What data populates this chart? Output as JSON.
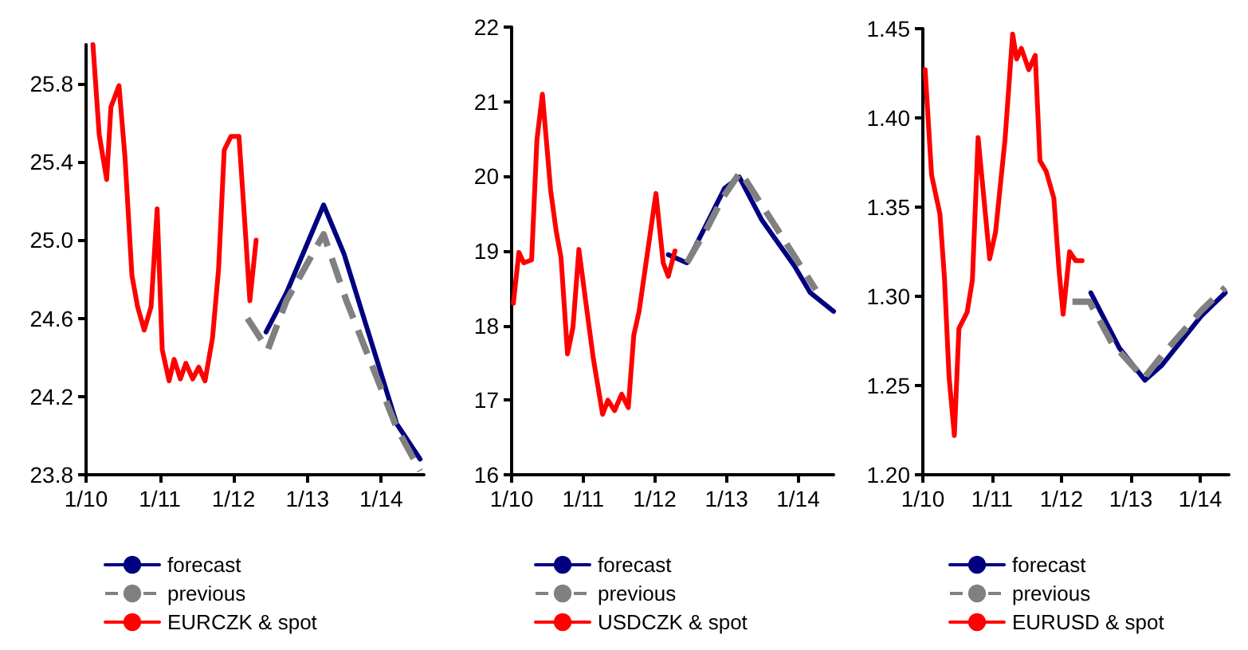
{
  "chart_data": [
    {
      "type": "line",
      "xlim": [
        "2010-01",
        "2014-08"
      ],
      "xticks": [
        {
          "value": "2010-01",
          "label": "1/10"
        },
        {
          "value": "2011-01",
          "label": "1/11"
        },
        {
          "value": "2012-01",
          "label": "1/12"
        },
        {
          "value": "2013-01",
          "label": "1/13"
        },
        {
          "value": "2014-01",
          "label": "1/14"
        }
      ],
      "ylim": [
        23.8,
        26.0
      ],
      "yticks": [
        23.8,
        24.2,
        24.6,
        {
          "value": 25,
          "label": "25.0"
        },
        25.4,
        25.8
      ],
      "legend": "bottom",
      "marker": "none",
      "series": [
        {
          "name": "forecast",
          "color": "#000080",
          "line_style": "solid",
          "x": [
            "2012-06-10",
            "2012-09-19",
            "2013-03-22",
            "2013-07-01",
            "2014-03-19",
            "2014-07-13"
          ],
          "values": [
            24.53,
            24.73,
            25.18,
            24.93,
            24.06,
            23.88
          ]
        },
        {
          "name": "previous",
          "color": "#808080",
          "line_style": "dashed",
          "x": [
            "2012-03-10",
            "2012-06-19",
            "2012-09-19",
            "2013-03-22",
            "2013-07-13",
            "2014-03-19",
            "2014-07-13"
          ],
          "values": [
            24.6,
            24.44,
            24.69,
            25.03,
            24.69,
            24.04,
            23.82
          ]
        },
        {
          "name": "EURCZK & spot",
          "color": "#ff0000",
          "line_style": "solid",
          "x": [
            "2010-02-04",
            "2010-03-07",
            "2010-04-13",
            "2010-05-04",
            "2010-06-13",
            "2010-07-13",
            "2010-08-16",
            "2010-09-13",
            "2010-10-16",
            "2010-11-19",
            "2010-12-19",
            "2011-01-13",
            "2011-02-16",
            "2011-03-13",
            "2011-04-13",
            "2011-05-10",
            "2011-06-13",
            "2011-07-13",
            "2011-08-13",
            "2011-09-19",
            "2011-10-19",
            "2011-11-16",
            "2011-12-19",
            "2012-01-28",
            "2012-02-22",
            "2012-03-22",
            "2012-04-22"
          ],
          "values": [
            26.0,
            25.54,
            25.31,
            25.68,
            25.79,
            25.42,
            24.82,
            24.66,
            24.54,
            24.66,
            25.16,
            24.44,
            24.28,
            24.39,
            24.29,
            24.37,
            24.29,
            24.35,
            24.28,
            24.5,
            24.85,
            25.46,
            25.53,
            25.53,
            25.15,
            24.69,
            25.0
          ]
        }
      ]
    },
    {
      "type": "line",
      "xlim": [
        "2010-01",
        "2014-07"
      ],
      "xticks": [
        {
          "value": "2010-01",
          "label": "1/10"
        },
        {
          "value": "2011-01",
          "label": "1/11"
        },
        {
          "value": "2012-01",
          "label": "1/12"
        },
        {
          "value": "2013-01",
          "label": "1/13"
        },
        {
          "value": "2014-01",
          "label": "1/14"
        }
      ],
      "ylim": [
        16,
        22
      ],
      "yticks": [
        16,
        17,
        18,
        19,
        20,
        21,
        22
      ],
      "legend": "bottom",
      "marker": "none",
      "series": [
        {
          "name": "forecast",
          "color": "#000080",
          "line_style": "solid",
          "x": [
            "2012-03-10",
            "2012-06-13",
            "2012-10-01",
            "2012-12-22",
            "2013-03-07",
            "2013-07-01",
            "2013-12-13",
            "2014-03-04",
            "2014-07-01"
          ],
          "values": [
            18.95,
            18.84,
            19.41,
            19.84,
            19.99,
            19.41,
            18.8,
            18.44,
            18.19
          ]
        },
        {
          "name": "previous",
          "color": "#808080",
          "line_style": "dashed",
          "x": [
            "2012-06-13",
            "2012-10-01",
            "2012-12-10",
            "2013-03-13",
            "2013-09-22",
            "2014-04-01"
          ],
          "values": [
            18.84,
            19.34,
            19.7,
            20.06,
            19.27,
            18.48
          ]
        },
        {
          "name": "USDCZK & spot",
          "color": "#ff0000",
          "line_style": "solid",
          "x": [
            "2010-01-10",
            "2010-02-07",
            "2010-03-04",
            "2010-04-13",
            "2010-05-10",
            "2010-06-07",
            "2010-07-19",
            "2010-08-16",
            "2010-09-10",
            "2010-10-13",
            "2010-11-10",
            "2010-12-10",
            "2011-01-13",
            "2011-02-22",
            "2011-04-10",
            "2011-05-07",
            "2011-06-10",
            "2011-07-16",
            "2011-08-19",
            "2011-09-16",
            "2011-10-13",
            "2011-12-07",
            "2012-01-07",
            "2012-02-13",
            "2012-03-10",
            "2012-04-13"
          ],
          "values": [
            18.3,
            18.98,
            18.84,
            18.88,
            20.49,
            21.1,
            19.81,
            19.27,
            18.91,
            17.62,
            17.98,
            19.02,
            18.34,
            17.55,
            16.81,
            17.0,
            16.86,
            17.08,
            16.9,
            17.87,
            18.19,
            19.2,
            19.77,
            18.84,
            18.66,
            19.0
          ]
        }
      ]
    },
    {
      "type": "line",
      "xlim": [
        "2010-01",
        "2014-06"
      ],
      "xticks": [
        {
          "value": "2010-01",
          "label": "1/10"
        },
        {
          "value": "2011-01",
          "label": "1/11"
        },
        {
          "value": "2012-01",
          "label": "1/12"
        },
        {
          "value": "2013-01",
          "label": "1/13"
        },
        {
          "value": "2014-01",
          "label": "1/14"
        }
      ],
      "ylim": [
        1.2,
        1.45
      ],
      "yticks": [
        {
          "value": 1.2,
          "label": "1.20"
        },
        {
          "value": 1.25,
          "label": "1.25"
        },
        {
          "value": 1.3,
          "label": "1.30"
        },
        {
          "value": 1.35,
          "label": "1.35"
        },
        {
          "value": 1.4,
          "label": "1.40"
        },
        {
          "value": 1.45,
          "label": "1.45"
        }
      ],
      "legend": "bottom",
      "marker": "none",
      "series": [
        {
          "name": "forecast",
          "color": "#000080",
          "line_style": "solid",
          "x": [
            "2012-06-04",
            "2012-11-01",
            "2013-03-16",
            "2013-06-10",
            "2014-01-07",
            "2014-05-13"
          ],
          "values": [
            1.302,
            1.271,
            1.253,
            1.261,
            1.289,
            1.302
          ]
        },
        {
          "name": "previous",
          "color": "#808080",
          "line_style": "dashed",
          "x": [
            "2012-02-28",
            "2012-05-28",
            "2012-09-22",
            "2013-03-10",
            "2013-06-22",
            "2014-01-07",
            "2014-05-13"
          ],
          "values": [
            1.297,
            1.297,
            1.274,
            1.254,
            1.268,
            1.292,
            1.305
          ]
        },
        {
          "name": "EURUSD & spot",
          "color": "#ff0000",
          "line_style": "solid",
          "x": [
            "2010-01-13",
            "2010-02-16",
            "2010-04-01",
            "2010-04-25",
            "2010-05-19",
            "2010-06-16",
            "2010-07-10",
            "2010-08-22",
            "2010-09-19",
            "2010-10-19",
            "2010-12-19",
            "2011-01-19",
            "2011-03-10",
            "2011-04-19",
            "2011-05-10",
            "2011-06-04",
            "2011-07-13",
            "2011-08-16",
            "2011-09-10",
            "2011-10-13",
            "2011-11-22",
            "2011-12-19",
            "2012-01-10",
            "2012-02-13",
            "2012-03-16",
            "2012-04-19"
          ],
          "values": [
            1.427,
            1.368,
            1.346,
            1.31,
            1.255,
            1.222,
            1.282,
            1.291,
            1.309,
            1.389,
            1.321,
            1.336,
            1.388,
            1.447,
            1.433,
            1.439,
            1.427,
            1.435,
            1.376,
            1.37,
            1.355,
            1.315,
            1.29,
            1.325,
            1.32,
            1.32
          ]
        }
      ]
    }
  ]
}
